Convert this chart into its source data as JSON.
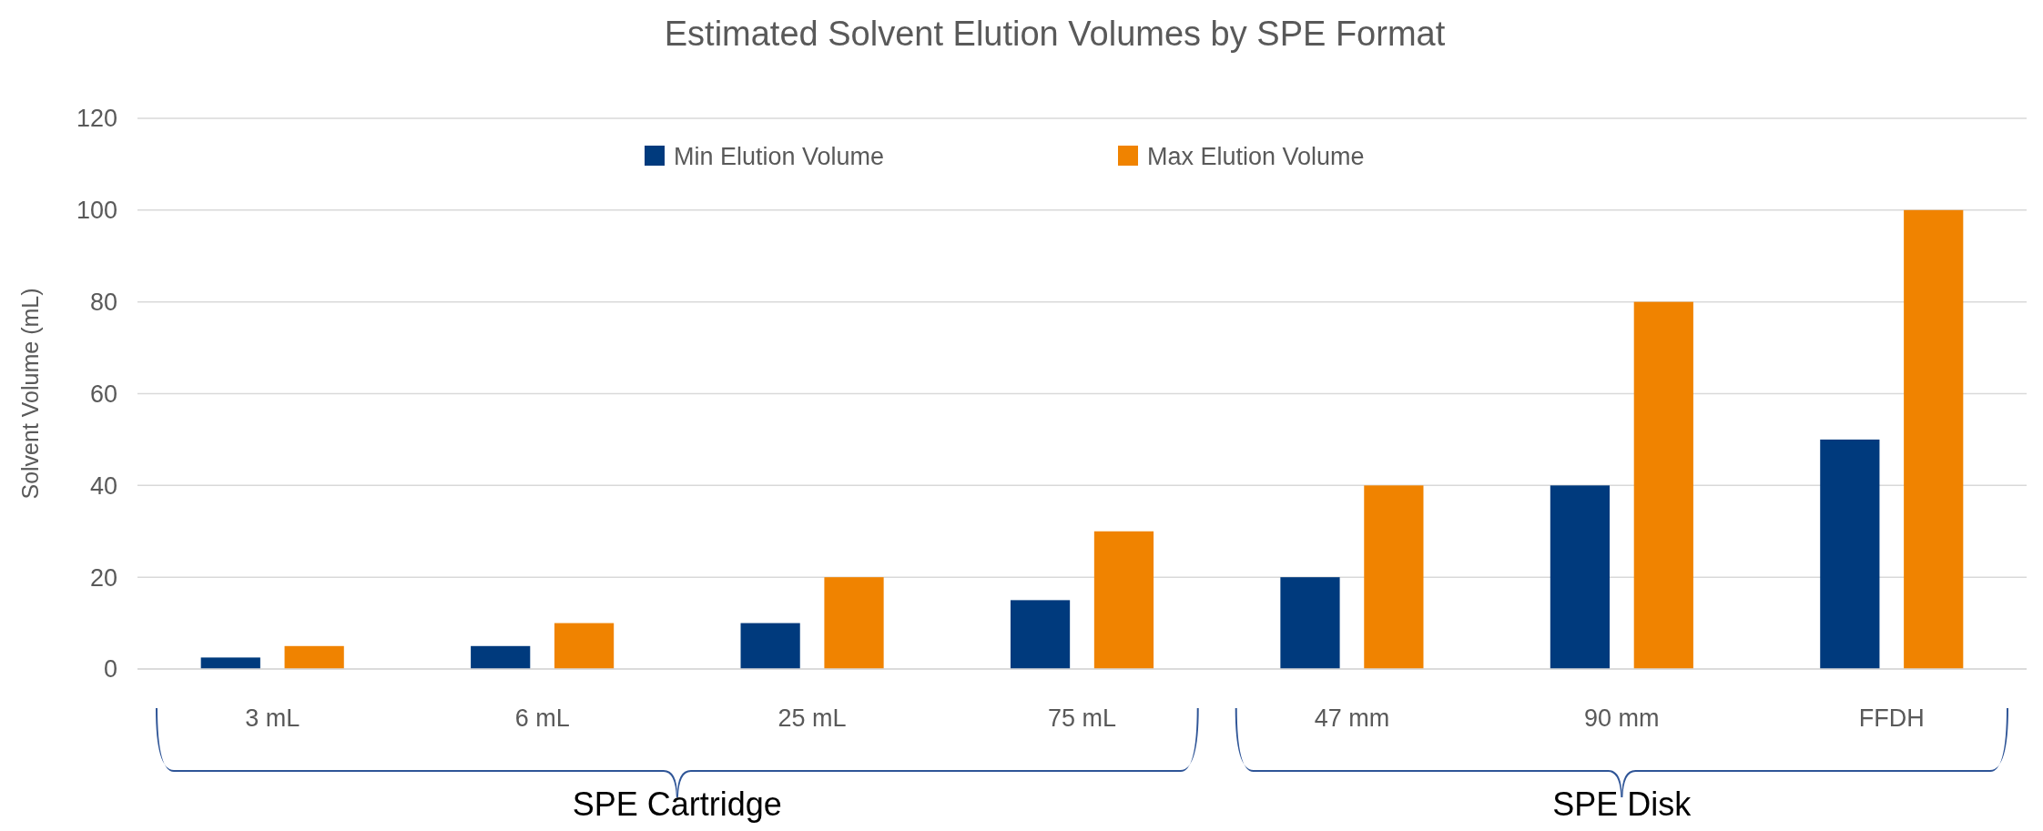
{
  "chart_data": {
    "type": "bar",
    "title": "Estimated Solvent Elution Volumes by SPE Format",
    "ylabel": "Solvent Volume (mL)",
    "categories": [
      "3 mL",
      "6 mL",
      "25 mL",
      "75 mL",
      "47 mm",
      "90 mm",
      "FFDH"
    ],
    "series": [
      {
        "name": "Min Elution Volume",
        "color": "#003a7d",
        "values": [
          2.5,
          5,
          10,
          15,
          20,
          40,
          50
        ]
      },
      {
        "name": "Max Elution Volume",
        "color": "#f08300",
        "values": [
          5,
          10,
          20,
          30,
          40,
          80,
          100
        ]
      }
    ],
    "ylim": [
      0,
      120
    ],
    "yticks": [
      0,
      20,
      40,
      60,
      80,
      100,
      120
    ],
    "grid": "y",
    "legend": "top",
    "annotations": [
      "SPE Cartridge",
      "SPE Disk"
    ]
  }
}
